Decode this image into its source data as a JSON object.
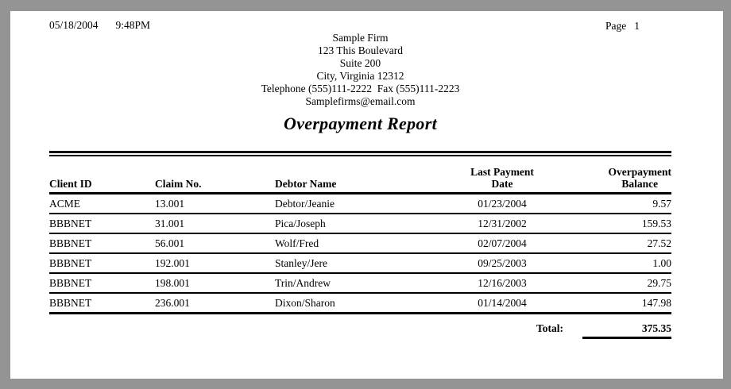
{
  "header": {
    "printed_date": "05/18/2004",
    "printed_time": "9:48PM",
    "page_label": "Page",
    "page_number": "1"
  },
  "firm": {
    "name": "Sample Firm",
    "address_line1": "123 This Boulevard",
    "address_line2": "Suite 200",
    "address_line3": "City, Virginia 12312",
    "contact_line": "Telephone (555)111-2222  Fax (555)111-2223",
    "email": "Samplefirms@email.com"
  },
  "title": "Overpayment Report",
  "table": {
    "headers": [
      "Client ID",
      "Claim No.",
      "Debtor Name",
      "Last Payment\nDate",
      "Overpayment\nBalance"
    ],
    "rows": [
      {
        "client_id": "ACME",
        "claim_no": "13.001",
        "debtor_name": "Debtor/Jeanie",
        "last_payment_date": "01/23/2004",
        "overpayment_balance": "9.57"
      },
      {
        "client_id": "BBBNET",
        "claim_no": "31.001",
        "debtor_name": "Pica/Joseph",
        "last_payment_date": "12/31/2002",
        "overpayment_balance": "159.53"
      },
      {
        "client_id": "BBBNET",
        "claim_no": "56.001",
        "debtor_name": "Wolf/Fred",
        "last_payment_date": "02/07/2004",
        "overpayment_balance": "27.52"
      },
      {
        "client_id": "BBBNET",
        "claim_no": "192.001",
        "debtor_name": "Stanley/Jere",
        "last_payment_date": "09/25/2003",
        "overpayment_balance": "1.00"
      },
      {
        "client_id": "BBBNET",
        "claim_no": "198.001",
        "debtor_name": "Trin/Andrew",
        "last_payment_date": "12/16/2003",
        "overpayment_balance": "29.75"
      },
      {
        "client_id": "BBBNET",
        "claim_no": "236.001",
        "debtor_name": "Dixon/Sharon",
        "last_payment_date": "01/14/2004",
        "overpayment_balance": "147.98"
      }
    ],
    "total_label": "Total:",
    "total_value": "375.35"
  },
  "colors": {
    "surround": "#949494",
    "page_background": "#ffffff",
    "text": "#000000",
    "rule": "#000000"
  }
}
